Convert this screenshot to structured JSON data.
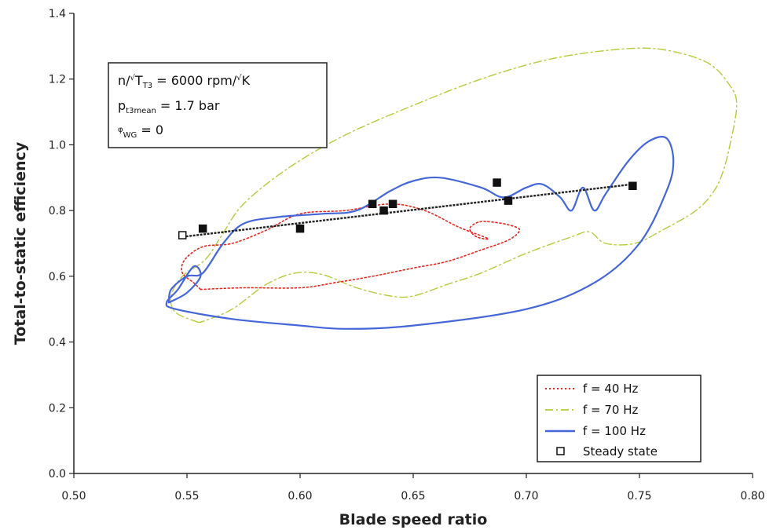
{
  "chart_data": {
    "type": "line",
    "xlabel": "Blade speed ratio",
    "ylabel": "Total-to-static efficiency",
    "xlim": [
      0.5,
      0.8
    ],
    "ylim": [
      0.0,
      1.4
    ],
    "x_ticks": [
      "0.50",
      "0.55",
      "0.60",
      "0.65",
      "0.70",
      "0.75",
      "0.80"
    ],
    "y_ticks": [
      "0.0",
      "0.2",
      "0.4",
      "0.6",
      "0.8",
      "1.0",
      "1.2",
      "1.4"
    ],
    "grid": false,
    "legend_position": "bottom-right",
    "annotation": {
      "line1_prefix": "n/",
      "line1_sqrt": "√",
      "line1_T": "T",
      "line1_sub": "T3",
      "line1_value": " = 6000 rpm/",
      "line1_unit_sqrt": "√",
      "line1_unit": "K",
      "line2_p": "p",
      "line2_sub": "t3mean",
      "line2_value": " = 1.7 bar",
      "line3_symbol": "φ",
      "line3_sub": "WG",
      "line3_value": " = 0"
    },
    "series": [
      {
        "name": "f = 40 Hz",
        "color": "#e8261c",
        "style": "dotted",
        "points": [
          [
            0.556,
            0.56
          ],
          [
            0.575,
            0.565
          ],
          [
            0.6,
            0.565
          ],
          [
            0.615,
            0.58
          ],
          [
            0.632,
            0.6
          ],
          [
            0.65,
            0.625
          ],
          [
            0.665,
            0.645
          ],
          [
            0.68,
            0.68
          ],
          [
            0.692,
            0.71
          ],
          [
            0.697,
            0.74
          ],
          [
            0.693,
            0.755
          ],
          [
            0.685,
            0.765
          ],
          [
            0.679,
            0.765
          ],
          [
            0.675,
            0.745
          ],
          [
            0.678,
            0.72
          ],
          [
            0.683,
            0.715
          ],
          [
            0.67,
            0.75
          ],
          [
            0.655,
            0.8
          ],
          [
            0.64,
            0.82
          ],
          [
            0.62,
            0.8
          ],
          [
            0.6,
            0.79
          ],
          [
            0.585,
            0.74
          ],
          [
            0.57,
            0.7
          ],
          [
            0.557,
            0.69
          ],
          [
            0.549,
            0.65
          ],
          [
            0.548,
            0.61
          ],
          [
            0.553,
            0.58
          ],
          [
            0.556,
            0.56
          ]
        ]
      },
      {
        "name": "f = 70 Hz",
        "color": "#b5cc3a",
        "style": "dash-dot",
        "points": [
          [
            0.555,
            0.46
          ],
          [
            0.545,
            0.49
          ],
          [
            0.543,
            0.54
          ],
          [
            0.548,
            0.6
          ],
          [
            0.558,
            0.65
          ],
          [
            0.565,
            0.72
          ],
          [
            0.575,
            0.82
          ],
          [
            0.595,
            0.93
          ],
          [
            0.62,
            1.03
          ],
          [
            0.65,
            1.12
          ],
          [
            0.68,
            1.2
          ],
          [
            0.71,
            1.26
          ],
          [
            0.74,
            1.29
          ],
          [
            0.76,
            1.29
          ],
          [
            0.78,
            1.25
          ],
          [
            0.79,
            1.18
          ],
          [
            0.793,
            1.12
          ],
          [
            0.79,
            1.0
          ],
          [
            0.787,
            0.92
          ],
          [
            0.783,
            0.86
          ],
          [
            0.775,
            0.8
          ],
          [
            0.76,
            0.74
          ],
          [
            0.748,
            0.7
          ],
          [
            0.735,
            0.7
          ],
          [
            0.728,
            0.735
          ],
          [
            0.72,
            0.72
          ],
          [
            0.7,
            0.67
          ],
          [
            0.68,
            0.61
          ],
          [
            0.665,
            0.575
          ],
          [
            0.65,
            0.54
          ],
          [
            0.64,
            0.54
          ],
          [
            0.625,
            0.565
          ],
          [
            0.61,
            0.605
          ],
          [
            0.598,
            0.61
          ],
          [
            0.585,
            0.575
          ],
          [
            0.57,
            0.5
          ],
          [
            0.558,
            0.465
          ],
          [
            0.555,
            0.46
          ]
        ]
      },
      {
        "name": "f = 100 Hz",
        "color": "#4466d9",
        "style": "solid",
        "points": [
          [
            0.542,
            0.52
          ],
          [
            0.55,
            0.55
          ],
          [
            0.556,
            0.6
          ],
          [
            0.553,
            0.63
          ],
          [
            0.546,
            0.56
          ],
          [
            0.541,
            0.52
          ],
          [
            0.545,
            0.5
          ],
          [
            0.57,
            0.47
          ],
          [
            0.6,
            0.45
          ],
          [
            0.62,
            0.44
          ],
          [
            0.65,
            0.45
          ],
          [
            0.7,
            0.5
          ],
          [
            0.73,
            0.58
          ],
          [
            0.75,
            0.7
          ],
          [
            0.762,
            0.86
          ],
          [
            0.765,
            0.95
          ],
          [
            0.762,
            1.02
          ],
          [
            0.754,
            1.01
          ],
          [
            0.745,
            0.95
          ],
          [
            0.735,
            0.85
          ],
          [
            0.73,
            0.8
          ],
          [
            0.725,
            0.87
          ],
          [
            0.72,
            0.8
          ],
          [
            0.715,
            0.84
          ],
          [
            0.707,
            0.88
          ],
          [
            0.7,
            0.87
          ],
          [
            0.69,
            0.84
          ],
          [
            0.68,
            0.87
          ],
          [
            0.662,
            0.9
          ],
          [
            0.65,
            0.89
          ],
          [
            0.64,
            0.86
          ],
          [
            0.625,
            0.8
          ],
          [
            0.61,
            0.79
          ],
          [
            0.59,
            0.78
          ],
          [
            0.575,
            0.76
          ],
          [
            0.566,
            0.7
          ],
          [
            0.557,
            0.61
          ],
          [
            0.55,
            0.6
          ],
          [
            0.543,
            0.56
          ],
          [
            0.542,
            0.52
          ]
        ]
      },
      {
        "name": "Steady state",
        "color": "#111111",
        "style": "markers",
        "points": [
          [
            0.548,
            0.725
          ],
          [
            0.557,
            0.745
          ],
          [
            0.6,
            0.745
          ],
          [
            0.632,
            0.82
          ],
          [
            0.637,
            0.8
          ],
          [
            0.641,
            0.82
          ],
          [
            0.687,
            0.885
          ],
          [
            0.692,
            0.83
          ],
          [
            0.747,
            0.875
          ]
        ]
      }
    ],
    "trend_line": {
      "points": [
        [
          0.548,
          0.72
        ],
        [
          0.747,
          0.88
        ]
      ],
      "color": "#222222"
    }
  }
}
